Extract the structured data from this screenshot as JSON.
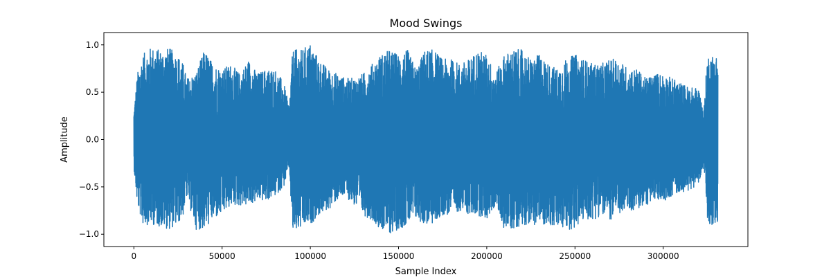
{
  "chart_data": {
    "type": "line",
    "title": "Mood Swings",
    "xlabel": "Sample Index",
    "ylabel": "Amplitude",
    "xlim": [
      -17000,
      348000
    ],
    "ylim": [
      -1.13,
      1.13
    ],
    "xticks": [
      0,
      50000,
      100000,
      150000,
      200000,
      250000,
      300000
    ],
    "xtick_labels": [
      "0",
      "50000",
      "100000",
      "150000",
      "200000",
      "250000",
      "300000"
    ],
    "yticks": [
      -1.0,
      -0.5,
      0.0,
      0.5,
      1.0
    ],
    "ytick_labels": [
      "−1.0",
      "−0.5",
      "0.0",
      "0.5",
      "1.0"
    ],
    "grid": false,
    "series": [
      {
        "color": "#1f77b4",
        "x_start": 0,
        "x_end": 331000,
        "envelope_x": [
          0,
          2000,
          5000,
          10000,
          15000,
          20000,
          25000,
          28000,
          30000,
          35000,
          40000,
          45000,
          50000,
          55000,
          60000,
          65000,
          70000,
          75000,
          80000,
          85000,
          88000,
          90000,
          95000,
          100000,
          105000,
          110000,
          115000,
          120000,
          125000,
          130000,
          135000,
          140000,
          145000,
          150000,
          155000,
          160000,
          165000,
          170000,
          175000,
          180000,
          185000,
          190000,
          195000,
          200000,
          205000,
          210000,
          215000,
          220000,
          225000,
          230000,
          235000,
          240000,
          245000,
          250000,
          255000,
          260000,
          265000,
          270000,
          275000,
          280000,
          285000,
          290000,
          295000,
          300000,
          305000,
          310000,
          315000,
          320000,
          323000,
          325000,
          328000,
          331000
        ],
        "envelope_upper": [
          0.3,
          0.7,
          0.9,
          0.98,
          0.95,
          0.97,
          0.9,
          0.8,
          0.65,
          0.7,
          0.95,
          0.8,
          0.75,
          0.8,
          0.7,
          0.85,
          0.7,
          0.75,
          0.75,
          0.6,
          0.35,
          0.95,
          0.95,
          1.02,
          0.85,
          0.75,
          0.7,
          0.65,
          0.65,
          0.7,
          0.8,
          0.9,
          0.95,
          0.9,
          0.95,
          0.75,
          0.95,
          0.95,
          0.85,
          0.85,
          0.8,
          0.85,
          0.95,
          0.9,
          0.7,
          0.9,
          0.95,
          0.95,
          0.85,
          0.9,
          0.8,
          0.75,
          0.85,
          0.9,
          0.85,
          0.8,
          0.8,
          0.85,
          0.85,
          0.75,
          0.75,
          0.65,
          0.7,
          0.7,
          0.65,
          0.6,
          0.55,
          0.55,
          0.3,
          0.9,
          0.9,
          0.9
        ],
        "envelope_lower": [
          -0.3,
          -0.7,
          -0.9,
          -0.9,
          -0.92,
          -0.95,
          -0.9,
          -0.8,
          -0.6,
          -0.95,
          -0.95,
          -0.85,
          -0.8,
          -0.7,
          -0.7,
          -0.7,
          -0.65,
          -0.65,
          -0.6,
          -0.5,
          -0.3,
          -1.0,
          -0.95,
          -0.9,
          -0.8,
          -0.75,
          -0.65,
          -0.6,
          -0.7,
          -0.8,
          -0.85,
          -0.95,
          -1.0,
          -0.95,
          -0.9,
          -0.85,
          -0.9,
          -0.9,
          -0.8,
          -0.8,
          -0.75,
          -0.8,
          -0.8,
          -0.85,
          -0.7,
          -0.95,
          -0.95,
          -0.9,
          -0.9,
          -0.9,
          -0.9,
          -0.95,
          -0.95,
          -0.95,
          -0.85,
          -0.85,
          -0.8,
          -0.85,
          -0.8,
          -0.75,
          -0.75,
          -0.7,
          -0.65,
          -0.65,
          -0.6,
          -0.55,
          -0.55,
          -0.45,
          -0.3,
          -0.9,
          -0.9,
          -0.9
        ]
      }
    ]
  }
}
